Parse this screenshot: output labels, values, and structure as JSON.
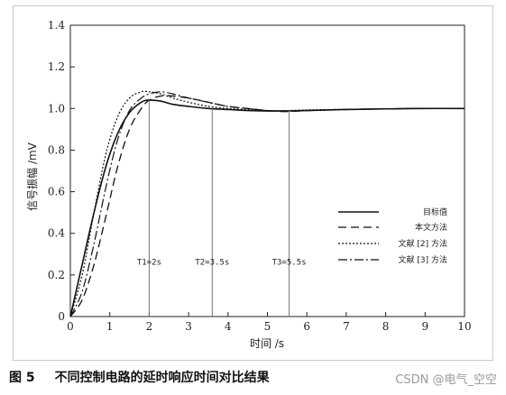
{
  "caption": {
    "figure_number": "图 5",
    "text": "不同控制电路的延时响应时间对比结果"
  },
  "watermark": "CSDN @电气_空空",
  "chart_data": {
    "type": "line",
    "xlabel": "时间 /s",
    "ylabel": "信号振幅 /mV",
    "xlim": [
      0,
      10
    ],
    "ylim": [
      0,
      1.4
    ],
    "x_ticks": [
      0,
      1,
      2,
      3,
      4,
      5,
      6,
      7,
      8,
      9,
      10
    ],
    "y_ticks": [
      0,
      0.2,
      0.4,
      0.6,
      0.8,
      1.0,
      1.2,
      1.4
    ],
    "x_tick_labels": [
      "0",
      "1",
      "2",
      "3",
      "4",
      "5",
      "6",
      "7",
      "8",
      "9",
      "10"
    ],
    "y_tick_labels": [
      "0",
      "0.2",
      "0.4",
      "0.6",
      "0.8",
      "1.0",
      "1.2",
      "1.4"
    ],
    "grid": false,
    "legend_position": "lower-right",
    "series": [
      {
        "name": "目标值",
        "style": "solid",
        "color": "#111111",
        "x": [
          0,
          0.3,
          0.6,
          0.9,
          1.2,
          1.5,
          1.8,
          2.0,
          2.3,
          2.6,
          3.0,
          3.5,
          4.0,
          4.5,
          5.0,
          5.5,
          6.0,
          7.0,
          8.0,
          9.0,
          10.0
        ],
        "y": [
          0,
          0.25,
          0.5,
          0.72,
          0.88,
          0.98,
          1.03,
          1.04,
          1.035,
          1.02,
          1.01,
          1.0,
          0.995,
          0.99,
          0.988,
          0.988,
          0.99,
          0.995,
          0.998,
          1.0,
          1.0
        ]
      },
      {
        "name": "本文方法",
        "style": "dashed",
        "color": "#111111",
        "x": [
          0,
          0.3,
          0.6,
          0.9,
          1.2,
          1.5,
          1.8,
          2.0,
          2.3,
          2.6,
          3.0,
          3.5,
          4.0,
          4.5,
          5.0,
          5.5,
          6.0,
          7.0,
          8.0,
          9.0,
          10.0
        ],
        "y": [
          0,
          0.08,
          0.25,
          0.48,
          0.72,
          0.9,
          1.0,
          1.04,
          1.06,
          1.06,
          1.05,
          1.03,
          1.01,
          1.0,
          0.99,
          0.985,
          0.99,
          0.995,
          0.998,
          1.0,
          1.0
        ]
      },
      {
        "name": "文献 [2] 方法",
        "style": "dotted",
        "color": "#111111",
        "x": [
          0,
          0.3,
          0.6,
          0.9,
          1.2,
          1.5,
          1.8,
          2.0,
          2.3,
          2.6,
          3.0,
          3.5,
          4.0,
          4.5,
          5.0,
          5.5,
          6.0,
          7.0,
          8.0,
          9.0,
          10.0
        ],
        "y": [
          0,
          0.2,
          0.5,
          0.78,
          0.96,
          1.05,
          1.08,
          1.08,
          1.07,
          1.05,
          1.03,
          1.01,
          1.0,
          0.995,
          0.99,
          0.99,
          0.993,
          0.996,
          0.998,
          1.0,
          1.0
        ]
      },
      {
        "name": "文献 [3] 方法",
        "style": "dashdot",
        "color": "#111111",
        "x": [
          0,
          0.3,
          0.6,
          0.9,
          1.2,
          1.5,
          1.8,
          2.0,
          2.3,
          2.6,
          3.0,
          3.5,
          4.0,
          4.5,
          5.0,
          5.5,
          6.0,
          7.0,
          8.0,
          9.0,
          10.0
        ],
        "y": [
          0,
          0.12,
          0.35,
          0.62,
          0.85,
          0.99,
          1.05,
          1.07,
          1.08,
          1.07,
          1.05,
          1.03,
          1.01,
          1.0,
          0.99,
          0.988,
          0.99,
          0.995,
          0.998,
          1.0,
          1.0
        ]
      }
    ],
    "annotations": [
      {
        "label": "T1=2s",
        "x": 2,
        "y_top": 1.04
      },
      {
        "label": "T2=3.5s",
        "x": 3.6,
        "y_top": 1.0
      },
      {
        "label": "T3=5.5s",
        "x": 5.55,
        "y_top": 0.99
      }
    ]
  }
}
